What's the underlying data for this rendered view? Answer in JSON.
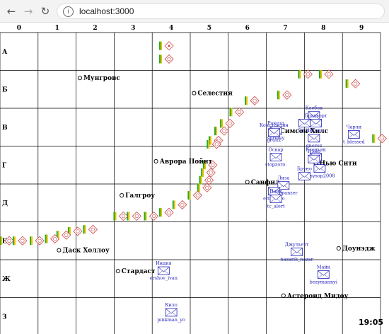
{
  "browser": {
    "url": "localhost:3000"
  },
  "grid": {
    "columns": [
      "0",
      "1",
      "2",
      "3",
      "4",
      "5",
      "6",
      "7",
      "8",
      "9"
    ],
    "rows": [
      "А",
      "Б",
      "В",
      "Г",
      "Д",
      "Е",
      "Ж",
      "З"
    ]
  },
  "systems": [
    {
      "name": "Мунгровс",
      "c": 2.1,
      "r": 1.2,
      "dx": 5
    },
    {
      "name": "Селестия",
      "c": 5.1,
      "r": 1.6,
      "dx": 5
    },
    {
      "name": "Симсон Хилс",
      "c": 7.3,
      "r": 2.6,
      "dx": 3
    },
    {
      "name": "Аврора Пойнт",
      "c": 4.1,
      "r": 3.4,
      "dx": 5
    },
    {
      "name": "Нью Сити",
      "c": 8.3,
      "r": 3.45,
      "dx": 5
    },
    {
      "name": "Санфил",
      "c": 6.5,
      "r": 3.95,
      "dx": 5
    },
    {
      "name": "Галгроу",
      "c": 3.2,
      "r": 4.3,
      "dx": 5
    },
    {
      "name": "Даск Холлоу",
      "c": 1.55,
      "r": 5.75,
      "dx": 5
    },
    {
      "name": "Доунэдж",
      "c": 8.9,
      "r": 5.7,
      "dx": 5
    },
    {
      "name": "Стардаст",
      "c": 3.1,
      "r": 6.3,
      "dx": 5
    },
    {
      "name": "Астероид Мидоу",
      "c": 7.45,
      "r": 6.95,
      "dx": 5
    }
  ],
  "players": [
    {
      "name": "Кеебек",
      "login": "",
      "c": 8.25,
      "r": 2.2
    },
    {
      "name": "",
      "login": "5d_bi",
      "c": 8.0,
      "r": 2.4
    },
    {
      "name": "Ракета",
      "login": "sprinky",
      "c": 7.25,
      "r": 2.6
    },
    {
      "name": "Константин",
      "login": "gruitz",
      "c": 7.2,
      "r": 2.65
    },
    {
      "name": "Брэдворт",
      "login": "lekeno",
      "c": 8.3,
      "r": 2.4
    },
    {
      "name": "",
      "login": "gneroz",
      "c": 8.25,
      "r": 2.8
    },
    {
      "name": "Чарли",
      "login": "t_blessed",
      "c": 9.3,
      "r": 2.7
    },
    {
      "name": "Оскар",
      "login": "stopzoro.",
      "c": 7.25,
      "r": 3.3
    },
    {
      "name": "Ксеньяк",
      "login": "",
      "c": 8.3,
      "r": 3.3
    },
    {
      "name": "Нэмо",
      "login": "",
      "c": 8.25,
      "r": 3.35
    },
    {
      "name": "",
      "login": "desysop2008",
      "c": 8.4,
      "r": 3.6
    },
    {
      "name": "Бруно",
      "login": "",
      "c": 8.0,
      "r": 3.8
    },
    {
      "name": "Лиза",
      "login": "discopanzer",
      "c": 7.45,
      "r": 4.05
    },
    {
      "name": "",
      "login": "eltrunteo",
      "c": 7.2,
      "r": 4.2
    },
    {
      "name": "Пайк",
      "login": "tc_alert",
      "c": 7.25,
      "r": 4.4
    },
    {
      "name": "Джульетт",
      "login": "nazarik_nazar",
      "c": 7.8,
      "r": 5.8
    },
    {
      "name": "Индия",
      "login": "ershov_ivan",
      "c": 4.3,
      "r": 6.3
    },
    {
      "name": "Майк",
      "login": "bezymannyi",
      "c": 8.5,
      "r": 6.4
    },
    {
      "name": "Кило",
      "login": "pinkman_yo",
      "c": 4.5,
      "r": 7.4
    }
  ],
  "stations": [
    {
      "c": 4.35,
      "r": 0.35,
      "style": "dot"
    },
    {
      "c": 4.35,
      "r": 0.7
    },
    {
      "c": 8.0,
      "r": 1.1
    },
    {
      "c": 8.55,
      "r": 1.1
    },
    {
      "c": 9.25,
      "r": 1.35
    },
    {
      "c": 7.45,
      "r": 1.65
    },
    {
      "c": 6.6,
      "r": 1.8
    },
    {
      "c": 6.2,
      "r": 2.1
    },
    {
      "c": 5.95,
      "r": 2.4
    },
    {
      "c": 5.8,
      "r": 2.6
    },
    {
      "c": 5.65,
      "r": 2.85
    },
    {
      "c": 5.6,
      "r": 2.95
    },
    {
      "c": 9.95,
      "r": 2.8
    },
    {
      "c": 5.5,
      "r": 3.5
    },
    {
      "c": 5.45,
      "r": 3.7
    },
    {
      "c": 5.4,
      "r": 3.9
    },
    {
      "c": 5.35,
      "r": 4.1
    },
    {
      "c": 5.1,
      "r": 4.3
    },
    {
      "c": 4.7,
      "r": 4.55
    },
    {
      "c": 4.35,
      "r": 4.75
    },
    {
      "c": 3.95,
      "r": 4.85
    },
    {
      "c": 3.5,
      "r": 4.85
    },
    {
      "c": 3.15,
      "r": 4.85
    },
    {
      "c": 2.35,
      "r": 5.2
    },
    {
      "c": 1.95,
      "r": 5.25
    },
    {
      "c": 1.65,
      "r": 5.35
    },
    {
      "c": 1.35,
      "r": 5.45
    },
    {
      "c": 0.95,
      "r": 5.5
    },
    {
      "c": 0.5,
      "r": 5.5
    },
    {
      "c": 0.15,
      "r": 5.5
    }
  ],
  "clock": "19:05",
  "colors": {
    "grid": "#000000",
    "system": "#000000",
    "player": "#2222bb",
    "station": "#cc4444",
    "barGreen": "#22aa22",
    "barYellow": "#e6c200"
  }
}
